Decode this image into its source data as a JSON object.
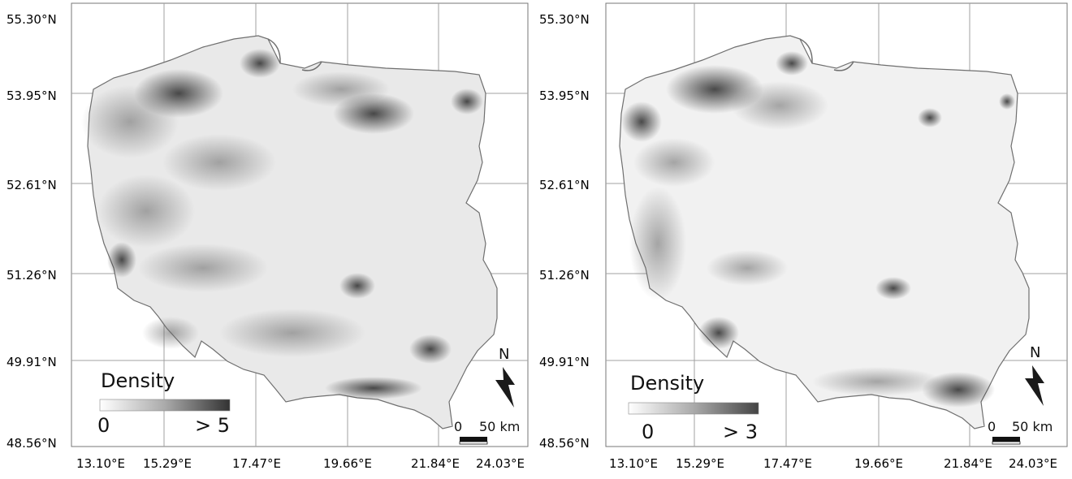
{
  "panels": [
    {
      "id": "left",
      "lat_labels": [
        "55.30°N",
        "53.95°N",
        "52.61°N",
        "51.26°N",
        "49.91°N",
        "48.56°N"
      ],
      "lon_labels": [
        "13.10°E",
        "15.29°E",
        "17.47°E",
        "19.66°E",
        "21.84°E",
        "24.03°E"
      ],
      "legend": {
        "title": "Density",
        "min_label": "0",
        "max_label": "> 5"
      },
      "north": "N",
      "scale": {
        "zero": "0",
        "distance": "50 km"
      }
    },
    {
      "id": "right",
      "lat_labels": [
        "55.30°N",
        "53.95°N",
        "52.61°N",
        "51.26°N",
        "49.91°N",
        "48.56°N"
      ],
      "lon_labels": [
        "13.10°E",
        "15.29°E",
        "17.47°E",
        "19.66°E",
        "21.84°E",
        "24.03°E"
      ],
      "legend": {
        "title": "Density",
        "min_label": "0",
        "max_label": "> 3"
      },
      "north": "N",
      "scale": {
        "zero": "0",
        "distance": "50 km"
      }
    }
  ],
  "colors": {
    "grid": "#9a9a9a",
    "border": "#6f6f6f",
    "high": "#333333",
    "low": "#ffffff"
  }
}
